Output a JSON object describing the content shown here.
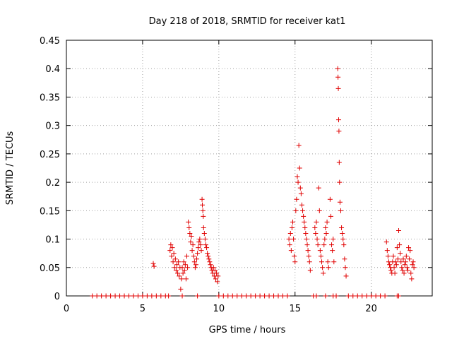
{
  "chart_data": {
    "type": "scatter",
    "title": "Day 218 of 2018, SRMTID for receiver kat1",
    "xlabel": "GPS time / hours",
    "ylabel": "SRMTID / TECUs",
    "xlim": [
      0,
      24
    ],
    "ylim": [
      0,
      0.45
    ],
    "xticks": [
      0,
      5,
      10,
      15,
      20
    ],
    "xtick_labels": [
      "0",
      "5",
      "10",
      "15",
      "20"
    ],
    "yticks": [
      0,
      0.05,
      0.1,
      0.15,
      0.2,
      0.25,
      0.3,
      0.35,
      0.4,
      0.45
    ],
    "ytick_labels": [
      "0",
      "0.05",
      "0.1",
      "0.15",
      "0.2",
      "0.25",
      "0.3",
      "0.35",
      "0.4",
      "0.45"
    ],
    "grid": true,
    "marker": "+",
    "color": "#e00000",
    "series": [
      {
        "name": "SRMTID",
        "points": [
          [
            1.7,
            0
          ],
          [
            2.0,
            0
          ],
          [
            2.3,
            0
          ],
          [
            2.6,
            0
          ],
          [
            2.9,
            0
          ],
          [
            3.2,
            0
          ],
          [
            3.5,
            0
          ],
          [
            3.8,
            0
          ],
          [
            4.1,
            0
          ],
          [
            4.4,
            0
          ],
          [
            4.7,
            0
          ],
          [
            5.0,
            0
          ],
          [
            5.3,
            0
          ],
          [
            5.6,
            0
          ],
          [
            5.9,
            0
          ],
          [
            6.2,
            0
          ],
          [
            6.5,
            0
          ],
          [
            6.7,
            0
          ],
          [
            7.6,
            0
          ],
          [
            8.6,
            0
          ],
          [
            10.0,
            0
          ],
          [
            10.3,
            0
          ],
          [
            10.6,
            0
          ],
          [
            10.9,
            0
          ],
          [
            11.2,
            0
          ],
          [
            11.5,
            0
          ],
          [
            11.8,
            0
          ],
          [
            12.1,
            0
          ],
          [
            12.4,
            0
          ],
          [
            12.7,
            0
          ],
          [
            13.0,
            0
          ],
          [
            13.3,
            0
          ],
          [
            13.6,
            0
          ],
          [
            13.9,
            0
          ],
          [
            14.2,
            0
          ],
          [
            14.5,
            0
          ],
          [
            16.2,
            0
          ],
          [
            16.4,
            0
          ],
          [
            17.0,
            0
          ],
          [
            17.5,
            0
          ],
          [
            17.7,
            0
          ],
          [
            18.5,
            0
          ],
          [
            18.8,
            0
          ],
          [
            19.1,
            0
          ],
          [
            19.4,
            0
          ],
          [
            19.7,
            0
          ],
          [
            20.0,
            0
          ],
          [
            20.3,
            0
          ],
          [
            20.6,
            0
          ],
          [
            20.9,
            0
          ],
          [
            21.7,
            0
          ],
          [
            21.8,
            0
          ],
          [
            5.7,
            0.057
          ],
          [
            5.75,
            0.052
          ],
          [
            6.8,
            0.08
          ],
          [
            6.85,
            0.09
          ],
          [
            6.9,
            0.07
          ],
          [
            6.95,
            0.085
          ],
          [
            7.0,
            0.06
          ],
          [
            7.05,
            0.075
          ],
          [
            7.1,
            0.05
          ],
          [
            7.15,
            0.065
          ],
          [
            7.2,
            0.045
          ],
          [
            7.25,
            0.055
          ],
          [
            7.3,
            0.04
          ],
          [
            7.35,
            0.06
          ],
          [
            7.4,
            0.035
          ],
          [
            7.45,
            0.05
          ],
          [
            7.5,
            0.012
          ],
          [
            7.55,
            0.03
          ],
          [
            7.6,
            0.05
          ],
          [
            7.65,
            0.04
          ],
          [
            7.7,
            0.06
          ],
          [
            7.75,
            0.045
          ],
          [
            7.8,
            0.055
          ],
          [
            7.85,
            0.03
          ],
          [
            7.9,
            0.07
          ],
          [
            7.95,
            0.05
          ],
          [
            8.0,
            0.13
          ],
          [
            8.05,
            0.12
          ],
          [
            8.1,
            0.11
          ],
          [
            8.15,
            0.095
          ],
          [
            8.2,
            0.105
          ],
          [
            8.25,
            0.08
          ],
          [
            8.3,
            0.09
          ],
          [
            8.35,
            0.07
          ],
          [
            8.4,
            0.06
          ],
          [
            8.45,
            0.05
          ],
          [
            8.5,
            0.055
          ],
          [
            8.55,
            0.065
          ],
          [
            8.6,
            0.075
          ],
          [
            8.65,
            0.085
          ],
          [
            8.7,
            0.095
          ],
          [
            8.75,
            0.1
          ],
          [
            8.8,
            0.09
          ],
          [
            8.85,
            0.08
          ],
          [
            8.9,
            0.17
          ],
          [
            8.92,
            0.16
          ],
          [
            8.95,
            0.15
          ],
          [
            8.98,
            0.14
          ],
          [
            9.0,
            0.12
          ],
          [
            9.05,
            0.11
          ],
          [
            9.1,
            0.1
          ],
          [
            9.15,
            0.09
          ],
          [
            9.2,
            0.085
          ],
          [
            9.25,
            0.075
          ],
          [
            9.3,
            0.07
          ],
          [
            9.35,
            0.065
          ],
          [
            9.4,
            0.06
          ],
          [
            9.45,
            0.055
          ],
          [
            9.5,
            0.05
          ],
          [
            9.55,
            0.045
          ],
          [
            9.6,
            0.04
          ],
          [
            9.65,
            0.05
          ],
          [
            9.7,
            0.035
          ],
          [
            9.75,
            0.045
          ],
          [
            9.8,
            0.03
          ],
          [
            9.85,
            0.04
          ],
          [
            9.9,
            0.025
          ],
          [
            9.95,
            0.035
          ],
          [
            14.6,
            0.1
          ],
          [
            14.65,
            0.09
          ],
          [
            14.7,
            0.11
          ],
          [
            14.75,
            0.08
          ],
          [
            14.8,
            0.12
          ],
          [
            14.85,
            0.13
          ],
          [
            14.9,
            0.1
          ],
          [
            14.95,
            0.07
          ],
          [
            15.0,
            0.06
          ],
          [
            15.05,
            0.15
          ],
          [
            15.1,
            0.17
          ],
          [
            15.15,
            0.21
          ],
          [
            15.2,
            0.2
          ],
          [
            15.25,
            0.265
          ],
          [
            15.3,
            0.225
          ],
          [
            15.35,
            0.19
          ],
          [
            15.4,
            0.18
          ],
          [
            15.45,
            0.16
          ],
          [
            15.5,
            0.15
          ],
          [
            15.55,
            0.14
          ],
          [
            15.6,
            0.13
          ],
          [
            15.65,
            0.12
          ],
          [
            15.7,
            0.11
          ],
          [
            15.75,
            0.1
          ],
          [
            15.8,
            0.09
          ],
          [
            15.85,
            0.08
          ],
          [
            15.9,
            0.07
          ],
          [
            15.95,
            0.06
          ],
          [
            16.0,
            0.045
          ],
          [
            16.3,
            0.12
          ],
          [
            16.35,
            0.11
          ],
          [
            16.4,
            0.13
          ],
          [
            16.45,
            0.1
          ],
          [
            16.5,
            0.09
          ],
          [
            16.55,
            0.19
          ],
          [
            16.6,
            0.15
          ],
          [
            16.65,
            0.08
          ],
          [
            16.7,
            0.07
          ],
          [
            16.75,
            0.06
          ],
          [
            16.8,
            0.05
          ],
          [
            16.85,
            0.04
          ],
          [
            16.9,
            0.09
          ],
          [
            16.95,
            0.1
          ],
          [
            17.0,
            0.12
          ],
          [
            17.05,
            0.11
          ],
          [
            17.1,
            0.13
          ],
          [
            17.15,
            0.06
          ],
          [
            17.2,
            0.05
          ],
          [
            17.3,
            0.17
          ],
          [
            17.35,
            0.14
          ],
          [
            17.4,
            0.09
          ],
          [
            17.45,
            0.08
          ],
          [
            17.5,
            0.1
          ],
          [
            17.55,
            0.06
          ],
          [
            17.8,
            0.4
          ],
          [
            17.82,
            0.385
          ],
          [
            17.84,
            0.365
          ],
          [
            17.86,
            0.31
          ],
          [
            17.88,
            0.29
          ],
          [
            17.9,
            0.235
          ],
          [
            17.92,
            0.2
          ],
          [
            17.95,
            0.165
          ],
          [
            18.0,
            0.15
          ],
          [
            18.05,
            0.12
          ],
          [
            18.1,
            0.11
          ],
          [
            18.15,
            0.1
          ],
          [
            18.2,
            0.09
          ],
          [
            18.25,
            0.065
          ],
          [
            18.3,
            0.05
          ],
          [
            18.35,
            0.035
          ],
          [
            21.0,
            0.095
          ],
          [
            21.05,
            0.08
          ],
          [
            21.1,
            0.07
          ],
          [
            21.15,
            0.06
          ],
          [
            21.2,
            0.055
          ],
          [
            21.25,
            0.05
          ],
          [
            21.3,
            0.045
          ],
          [
            21.35,
            0.04
          ],
          [
            21.4,
            0.06
          ],
          [
            21.45,
            0.07
          ],
          [
            21.5,
            0.05
          ],
          [
            21.55,
            0.04
          ],
          [
            21.6,
            0.06
          ],
          [
            21.65,
            0.055
          ],
          [
            21.7,
            0.085
          ],
          [
            21.75,
            0.065
          ],
          [
            21.8,
            0.115
          ],
          [
            21.85,
            0.09
          ],
          [
            21.9,
            0.075
          ],
          [
            21.95,
            0.06
          ],
          [
            22.0,
            0.05
          ],
          [
            22.05,
            0.045
          ],
          [
            22.1,
            0.065
          ],
          [
            22.15,
            0.04
          ],
          [
            22.2,
            0.055
          ],
          [
            22.25,
            0.06
          ],
          [
            22.3,
            0.07
          ],
          [
            22.35,
            0.05
          ],
          [
            22.4,
            0.045
          ],
          [
            22.45,
            0.085
          ],
          [
            22.5,
            0.065
          ],
          [
            22.55,
            0.08
          ],
          [
            22.6,
            0.04
          ],
          [
            22.65,
            0.03
          ],
          [
            22.7,
            0.055
          ],
          [
            22.75,
            0.06
          ],
          [
            22.8,
            0.05
          ]
        ]
      }
    ]
  }
}
